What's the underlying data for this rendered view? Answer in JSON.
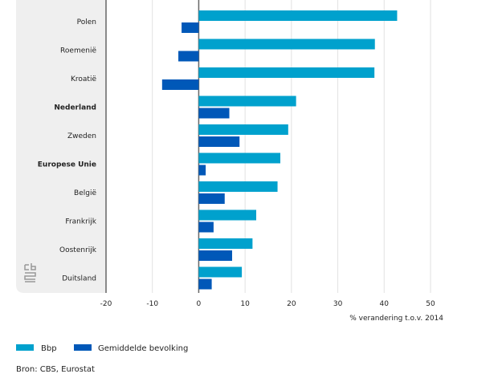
{
  "chart_data": {
    "type": "bar",
    "orientation": "horizontal",
    "categories": [
      "Polen",
      "Roemenië",
      "Kroatië",
      "Nederland",
      "Zweden",
      "Europese Unie",
      "België",
      "Frankrijk",
      "Oostenrijk",
      "Duitsland"
    ],
    "bold_categories": [
      "Nederland",
      "Europese Unie"
    ],
    "series": [
      {
        "name": "Bbp",
        "color": "#00a1cd",
        "values": [
          42.8,
          38.0,
          37.9,
          21.0,
          19.3,
          17.6,
          17.0,
          12.4,
          11.6,
          9.3
        ]
      },
      {
        "name": "Gemiddelde bevolking",
        "color": "#0058b8",
        "values": [
          -3.7,
          -4.4,
          -7.9,
          6.6,
          8.8,
          1.5,
          5.6,
          3.2,
          7.2,
          2.8
        ]
      }
    ],
    "xlim": [
      -20,
      50
    ],
    "xticks": [
      "-20",
      "-10",
      "0",
      "10",
      "20",
      "30",
      "40",
      "50"
    ],
    "xlabel": "% verandering t.o.v. 2014",
    "grid": true,
    "legend_position": "bottom-left",
    "source": "Bron: CBS, Eurostat",
    "logo": "cbs"
  }
}
